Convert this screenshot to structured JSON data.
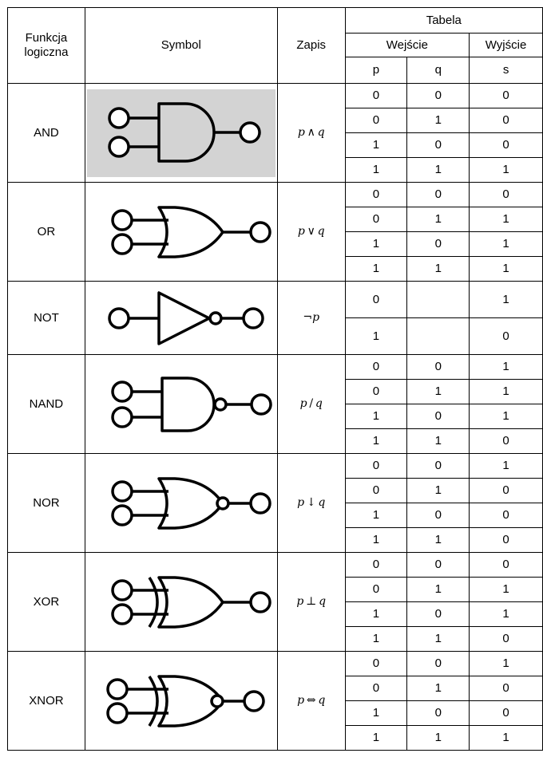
{
  "header": {
    "function": "Funkcja logiczna",
    "function_line1": "Funkcja",
    "function_line2": "logiczna",
    "symbol": "Symbol",
    "notation": "Zapis",
    "table": "Tabela",
    "inputs": "Wejście",
    "output": "Wyjście",
    "p": "p",
    "q": "q",
    "s": "s"
  },
  "gates": [
    {
      "name": "AND",
      "notation": {
        "left": "p",
        "op": "∧",
        "right": "q"
      },
      "icon": "and-gate-icon",
      "highlight": "#d3d3d3",
      "rows": [
        [
          "0",
          "0",
          "0"
        ],
        [
          "0",
          "1",
          "0"
        ],
        [
          "1",
          "0",
          "0"
        ],
        [
          "1",
          "1",
          "1"
        ]
      ]
    },
    {
      "name": "OR",
      "notation": {
        "left": "p",
        "op": "∨",
        "right": "q"
      },
      "icon": "or-gate-icon",
      "rows": [
        [
          "0",
          "0",
          "0"
        ],
        [
          "0",
          "1",
          "1"
        ],
        [
          "1",
          "0",
          "1"
        ],
        [
          "1",
          "1",
          "1"
        ]
      ]
    },
    {
      "name": "NOT",
      "notation": {
        "left": "",
        "op": "¬",
        "right": "p"
      },
      "icon": "not-gate-icon",
      "rows": [
        [
          "0",
          "",
          "1"
        ],
        [
          "1",
          "",
          "0"
        ]
      ]
    },
    {
      "name": "NAND",
      "notation": {
        "left": "p",
        "op": "/",
        "right": "q"
      },
      "icon": "nand-gate-icon",
      "rows": [
        [
          "0",
          "0",
          "1"
        ],
        [
          "0",
          "1",
          "1"
        ],
        [
          "1",
          "0",
          "1"
        ],
        [
          "1",
          "1",
          "0"
        ]
      ]
    },
    {
      "name": "NOR",
      "notation": {
        "left": "p",
        "op": "↓",
        "right": "q"
      },
      "icon": "nor-gate-icon",
      "rows": [
        [
          "0",
          "0",
          "1"
        ],
        [
          "0",
          "1",
          "0"
        ],
        [
          "1",
          "0",
          "0"
        ],
        [
          "1",
          "1",
          "0"
        ]
      ]
    },
    {
      "name": "XOR",
      "notation": {
        "left": "p",
        "op": "⊥",
        "right": "q"
      },
      "icon": "xor-gate-icon",
      "rows": [
        [
          "0",
          "0",
          "0"
        ],
        [
          "0",
          "1",
          "1"
        ],
        [
          "1",
          "0",
          "1"
        ],
        [
          "1",
          "1",
          "0"
        ]
      ]
    },
    {
      "name": "XNOR",
      "notation": {
        "left": "p",
        "op": "⇔",
        "right": "q"
      },
      "icon": "xnor-gate-icon",
      "rows": [
        [
          "0",
          "0",
          "1"
        ],
        [
          "0",
          "1",
          "0"
        ],
        [
          "1",
          "0",
          "0"
        ],
        [
          "1",
          "1",
          "1"
        ]
      ]
    }
  ]
}
